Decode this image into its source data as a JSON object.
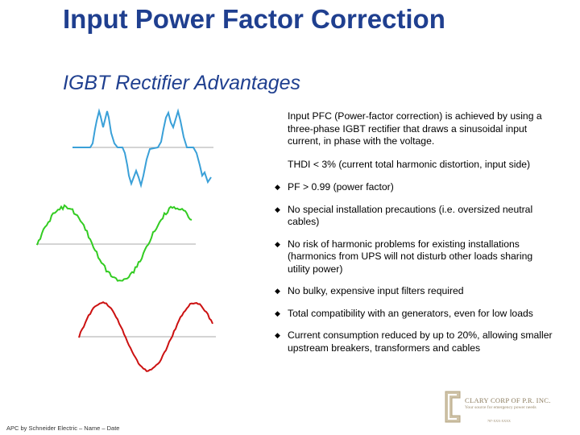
{
  "slide": {
    "title": "Input Power Factor Correction",
    "subtitle": "IGBT Rectifier Advantages",
    "intro": "Input PFC (Power-factor correction) is achieved by using a three-phase IGBT rectifier that draws a sinusoidal input current, in phase with the voltage.",
    "thdi": "THDI < 3% (current total harmonic distortion, input side)",
    "bullets": [
      "PF > 0.99 (power factor)",
      "No special installation precautions (i.e. oversized neutral cables)",
      "No risk of harmonic problems for existing installations (harmonics from UPS will not disturb other loads sharing utility power)",
      "No bulky, expensive input filters required",
      "Total compatibility with an generators, even for low loads",
      "Current consumption reduced by up to 20%, allowing smaller upstream breakers, transformers and cables"
    ],
    "footer": "APC by Schneider Electric – Name – Date"
  },
  "logo": {
    "name": "CLARY CORP OF P.R. INC.",
    "tagline": "Your source for emergency power needs",
    "contact": "787-XXX-XXXX"
  },
  "colors": {
    "title": "#1f3f8f",
    "wave_distorted": "#3aa0d8",
    "wave_green": "#33cc22",
    "wave_red": "#cc1111",
    "axis": "#aaaaaa"
  },
  "icons": {
    "bullet": "diamond-bullet-icon",
    "logo": "clary-corp-logo-icon"
  }
}
